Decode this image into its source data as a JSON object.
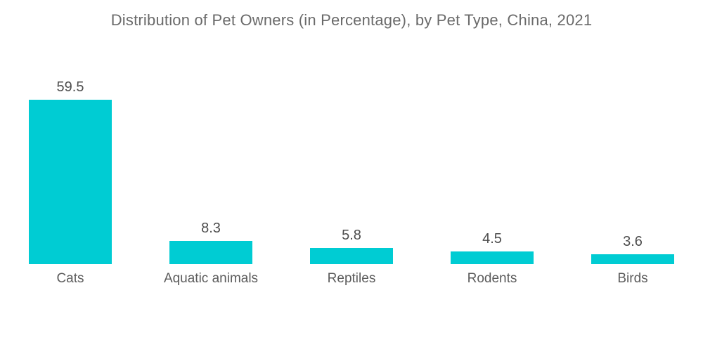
{
  "chart_data": {
    "type": "bar",
    "title": "Distribution of Pet Owners (in Percentage), by Pet Type, China, 2021",
    "categories": [
      "Cats",
      "Aquatic animals",
      "Reptiles",
      "Rodents",
      "Birds"
    ],
    "values": [
      59.5,
      8.3,
      5.8,
      4.5,
      3.6
    ],
    "value_labels": [
      "59.5",
      "8.3",
      "5.8",
      "4.5",
      "3.6"
    ],
    "orientation": "vertical",
    "data_label_position": "above-bar",
    "grid": false,
    "legend": false,
    "axes_visible": false,
    "ylim": [
      0,
      62
    ],
    "colors": {
      "bar": "#00CCD3",
      "title_text": "#6A6A6A",
      "value_text": "#4D4D4D",
      "category_text": "#5C5C5C",
      "background": "#FFFFFF"
    }
  }
}
